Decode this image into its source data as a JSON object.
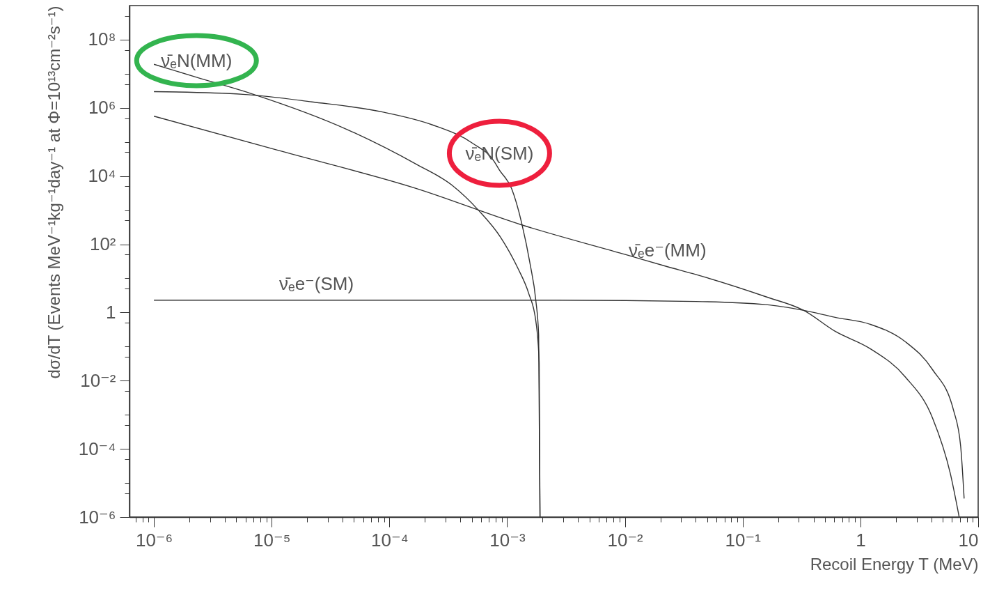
{
  "chart_data": {
    "type": "line",
    "xlabel": "Recoil Energy T (MeV)",
    "ylabel": "dσ/dT (Events MeV⁻¹kg⁻¹day⁻¹ at Φ=10¹³cm⁻²s⁻¹)",
    "log": "xy",
    "xlim": [
      6.2e-07,
      10
    ],
    "ylim": [
      1e-06,
      1000000000.0
    ],
    "xticks": [
      {
        "value": 7e-07,
        "label": null
      },
      {
        "value": 8e-07,
        "label": null
      },
      {
        "value": 9e-07,
        "label": null
      },
      {
        "value": 1e-06,
        "label": "10⁻⁶"
      },
      {
        "value": 2e-06,
        "label": null
      },
      {
        "value": 3e-06,
        "label": null
      },
      {
        "value": 4e-06,
        "label": null
      },
      {
        "value": 5e-06,
        "label": null
      },
      {
        "value": 6e-06,
        "label": null
      },
      {
        "value": 7e-06,
        "label": null
      },
      {
        "value": 8e-06,
        "label": null
      },
      {
        "value": 9e-06,
        "label": null
      },
      {
        "value": 1e-05,
        "label": "10⁻⁵"
      },
      {
        "value": 2e-05,
        "label": null
      },
      {
        "value": 3e-05,
        "label": null
      },
      {
        "value": 4e-05,
        "label": null
      },
      {
        "value": 5e-05,
        "label": null
      },
      {
        "value": 6e-05,
        "label": null
      },
      {
        "value": 7e-05,
        "label": null
      },
      {
        "value": 8e-05,
        "label": null
      },
      {
        "value": 9e-05,
        "label": null
      },
      {
        "value": 0.0001,
        "label": "10⁻⁴"
      },
      {
        "value": 0.0002,
        "label": null
      },
      {
        "value": 0.0003,
        "label": null
      },
      {
        "value": 0.0004,
        "label": null
      },
      {
        "value": 0.0005,
        "label": null
      },
      {
        "value": 0.0006,
        "label": null
      },
      {
        "value": 0.0007,
        "label": null
      },
      {
        "value": 0.0008,
        "label": null
      },
      {
        "value": 0.0009,
        "label": null
      },
      {
        "value": 0.001,
        "label": "10⁻³"
      },
      {
        "value": 0.002,
        "label": null
      },
      {
        "value": 0.003,
        "label": null
      },
      {
        "value": 0.004,
        "label": null
      },
      {
        "value": 0.005,
        "label": null
      },
      {
        "value": 0.006,
        "label": null
      },
      {
        "value": 0.007,
        "label": null
      },
      {
        "value": 0.008,
        "label": null
      },
      {
        "value": 0.009,
        "label": null
      },
      {
        "value": 0.01,
        "label": "10⁻²"
      },
      {
        "value": 0.02,
        "label": null
      },
      {
        "value": 0.03,
        "label": null
      },
      {
        "value": 0.04,
        "label": null
      },
      {
        "value": 0.05,
        "label": null
      },
      {
        "value": 0.06,
        "label": null
      },
      {
        "value": 0.07,
        "label": null
      },
      {
        "value": 0.08,
        "label": null
      },
      {
        "value": 0.09,
        "label": null
      },
      {
        "value": 0.1,
        "label": "10⁻¹"
      },
      {
        "value": 0.2,
        "label": null
      },
      {
        "value": 0.3,
        "label": null
      },
      {
        "value": 0.4,
        "label": null
      },
      {
        "value": 0.5,
        "label": null
      },
      {
        "value": 0.6,
        "label": null
      },
      {
        "value": 0.7,
        "label": null
      },
      {
        "value": 0.8,
        "label": null
      },
      {
        "value": 0.9,
        "label": null
      },
      1,
      {
        "value": 2,
        "label": null
      },
      {
        "value": 3,
        "label": null
      },
      {
        "value": 4,
        "label": null
      },
      {
        "value": 5,
        "label": null
      },
      {
        "value": 6,
        "label": null
      },
      {
        "value": 7,
        "label": null
      },
      {
        "value": 8,
        "label": null
      },
      {
        "value": 9,
        "label": null
      },
      10
    ],
    "yticks": [
      {
        "value": 1e-06,
        "label": "10⁻⁶"
      },
      {
        "value": 5e-06,
        "label": null
      },
      {
        "value": 1e-05,
        "label": null
      },
      {
        "value": 5e-05,
        "label": null
      },
      {
        "value": 0.0001,
        "label": "10⁻⁴"
      },
      {
        "value": 0.0005,
        "label": null
      },
      {
        "value": 0.001,
        "label": null
      },
      {
        "value": 0.005,
        "label": null
      },
      {
        "value": 0.01,
        "label": "10⁻²"
      },
      {
        "value": 0.05,
        "label": null
      },
      {
        "value": 0.1,
        "label": null
      },
      {
        "value": 0.5,
        "label": null
      },
      1,
      {
        "value": 5,
        "label": null
      },
      {
        "value": 10,
        "label": null
      },
      {
        "value": 50,
        "label": null
      },
      {
        "value": 100,
        "label": "10²"
      },
      {
        "value": 500,
        "label": null
      },
      {
        "value": 1000,
        "label": null
      },
      {
        "value": 5000,
        "label": null
      },
      {
        "value": 10000.0,
        "label": "10⁴"
      },
      {
        "value": 50000.0,
        "label": null
      },
      {
        "value": 100000.0,
        "label": null
      },
      {
        "value": 500000.0,
        "label": null
      },
      {
        "value": 1000000.0,
        "label": "10⁶"
      },
      {
        "value": 5000000.0,
        "label": null
      },
      {
        "value": 10000000.0,
        "label": null
      },
      {
        "value": 50000000.0,
        "label": null
      },
      {
        "value": 100000000.0,
        "label": "10⁸"
      },
      {
        "value": 500000000.0,
        "label": null
      }
    ],
    "series": [
      {
        "color": "#333333",
        "x": [
          1e-06,
          2.3e-06,
          7e-06,
          4.4e-05,
          0.00017,
          0.00034,
          0.00057,
          0.00088,
          0.00124,
          0.00152,
          0.00175,
          0.00187,
          0.0019
        ],
        "values": [
          19000000.0,
          7900000.0,
          2500000.0,
          230000.0,
          22000.0,
          5400.0,
          1000.0,
          160,
          19,
          3.7,
          0.57,
          0.034,
          1e-06
        ]
      },
      {
        "color": "#333333",
        "x": [
          1e-06,
          5.7e-06,
          2.2e-05,
          8.7e-05,
          0.00023,
          0.00051,
          0.00077,
          0.00086,
          0.00109,
          0.00133,
          0.00157,
          0.00175,
          0.00185,
          0.0019
        ],
        "values": [
          3000000.0,
          2500000.0,
          1500000.0,
          760000.0,
          320000.0,
          91000.0,
          28000.0,
          15000.0,
          4300.0,
          410,
          25,
          2.3,
          0.22,
          1e-06
        ]
      },
      {
        "color": "#333333",
        "x": [
          1e-06,
          1.13e-05,
          0.00017,
          0.00133,
          0.0103,
          0.023,
          0.04,
          0.157,
          0.33,
          0.61,
          1.21,
          2.4,
          4.1,
          5.8,
          6.9
        ],
        "values": [
          570000.0,
          57000.0,
          4300.0,
          370,
          49,
          22,
          13,
          2.9,
          1.15,
          0.28,
          0.087,
          0.013,
          0.0008,
          1.9e-05,
          1e-06
        ]
      },
      {
        "color": "#333333",
        "x": [
          1e-06,
          2.4e-05,
          4.4e-05,
          0.0026,
          0.04,
          0.157,
          0.33,
          0.61,
          1.21,
          2.4,
          4.1,
          6.2,
          7.1,
          7.6
        ],
        "values": [
          2.3,
          2.3,
          2.3,
          2.3,
          2.1,
          1.7,
          1.15,
          0.72,
          0.45,
          0.14,
          0.021,
          0.0013,
          0.00012,
          3.5e-06
        ]
      }
    ],
    "annotations": [
      {
        "text": "ν̄ₑN(MM)",
        "x": 2.3e-06,
        "y": 7900000.0
      },
      {
        "text": "ν̄ₑN(SM)",
        "x": 0.00086,
        "y": 15000.0
      },
      {
        "text": "ν̄ₑe⁻(MM)",
        "x": 0.023,
        "y": 22
      },
      {
        "text": "ν̄ₑe⁻(SM)",
        "x": 2.4e-05,
        "y": 2.3
      }
    ]
  }
}
